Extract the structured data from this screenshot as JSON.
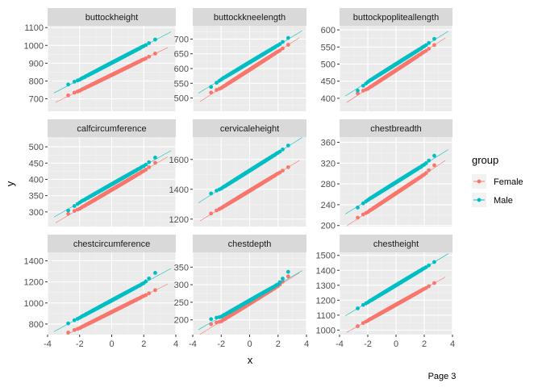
{
  "chart_data": {
    "type": "scatter",
    "subtype": "qq-plot facet grid",
    "xlabel": "x",
    "ylabel": "y",
    "xlim": [
      -4,
      4
    ],
    "x_ticks": [
      -4,
      -2,
      0,
      2,
      4
    ],
    "grid": true,
    "legend": {
      "title": "group",
      "placement": "right",
      "entries": [
        {
          "name": "Female",
          "color": "#F8766D"
        },
        {
          "name": "Male",
          "color": "#00BFC4"
        }
      ]
    },
    "footer": "Page 3",
    "panels": [
      {
        "title": "buttockheight",
        "ylim": [
          630,
          1110
        ],
        "y_ticks": [
          700,
          800,
          900,
          1000,
          1100
        ],
        "series": [
          {
            "name": "Female",
            "intercept": 834,
            "slope": 44,
            "qmin": -3.5,
            "qmax": 3.5,
            "low_tail": 10,
            "high_tail": 0
          },
          {
            "name": "Male",
            "intercept": 902,
            "slope": 47,
            "qmin": -3.6,
            "qmax": 3.7,
            "low_tail": 12,
            "high_tail": 6
          }
        ]
      },
      {
        "title": "buttockkneelength",
        "ylim": [
          455,
          745
        ],
        "y_ticks": [
          500,
          550,
          600,
          650,
          700
        ],
        "series": [
          {
            "name": "Female",
            "intercept": 596,
            "slope": 31,
            "qmin": -3.5,
            "qmax": 3.5,
            "low_tail": 14,
            "high_tail": 0
          },
          {
            "name": "Male",
            "intercept": 621,
            "slope": 29,
            "qmin": -3.6,
            "qmax": 3.7,
            "low_tail": -10,
            "high_tail": 8
          }
        ]
      },
      {
        "title": "buttockpopliteallength",
        "ylim": [
          362,
          612
        ],
        "y_ticks": [
          400,
          450,
          500,
          550,
          600
        ],
        "series": [
          {
            "name": "Female",
            "intercept": 482,
            "slope": 27,
            "qmin": -3.5,
            "qmax": 3.5,
            "low_tail": 12,
            "high_tail": 0
          },
          {
            "name": "Male",
            "intercept": 500,
            "slope": 26,
            "qmin": -3.6,
            "qmax": 3.7,
            "low_tail": -15,
            "high_tail": 6
          }
        ]
      },
      {
        "title": "calfcircumference",
        "ylim": [
          255,
          530
        ],
        "y_ticks": [
          300,
          350,
          400,
          450,
          500
        ],
        "series": [
          {
            "name": "Female",
            "intercept": 368,
            "slope": 29,
            "qmin": -3.5,
            "qmax": 3.5,
            "low_tail": 10,
            "high_tail": 8
          },
          {
            "name": "Male",
            "intercept": 385,
            "slope": 28,
            "qmin": -3.6,
            "qmax": 3.7,
            "low_tail": -10,
            "high_tail": 12
          }
        ]
      },
      {
        "title": "cervicaleheight",
        "ylim": [
          1150,
          1750
        ],
        "y_ticks": [
          1200,
          1400,
          1600
        ],
        "series": [
          {
            "name": "Female",
            "intercept": 1390,
            "slope": 58,
            "qmin": -3.5,
            "qmax": 3.5,
            "low_tail": 10,
            "high_tail": 0
          },
          {
            "name": "Male",
            "intercept": 1525,
            "slope": 60,
            "qmin": -3.6,
            "qmax": 3.7,
            "low_tail": 20,
            "high_tail": 10
          }
        ]
      },
      {
        "title": "chestbreadth",
        "ylim": [
          198,
          370
        ],
        "y_ticks": [
          200,
          240,
          280,
          320,
          360
        ],
        "series": [
          {
            "name": "Female",
            "intercept": 262,
            "slope": 18,
            "qmin": -3.5,
            "qmax": 3.5,
            "low_tail": 4,
            "high_tail": 10
          },
          {
            "name": "Male",
            "intercept": 283,
            "slope": 17,
            "qmin": -3.6,
            "qmax": 3.7,
            "low_tail": -5,
            "high_tail": 10
          }
        ]
      },
      {
        "title": "chestcircumference",
        "ylim": [
          700,
          1480
        ],
        "y_ticks": [
          800,
          1000,
          1200,
          1400
        ],
        "series": [
          {
            "name": "Female",
            "intercept": 914,
            "slope": 76,
            "qmin": -3.5,
            "qmax": 3.5,
            "low_tail": 25,
            "high_tail": 0
          },
          {
            "name": "Male",
            "intercept": 1024,
            "slope": 82,
            "qmin": -3.6,
            "qmax": 3.7,
            "low_tail": 10,
            "high_tail": 80
          }
        ]
      },
      {
        "title": "chestdepth",
        "ylim": [
          158,
          392
        ],
        "y_ticks": [
          200,
          250,
          300,
          350
        ],
        "series": [
          {
            "name": "Female",
            "intercept": 246,
            "slope": 25,
            "qmin": -3.5,
            "qmax": 3.5,
            "low_tail": 20,
            "high_tail": 20
          },
          {
            "name": "Male",
            "intercept": 255,
            "slope": 23,
            "qmin": -3.6,
            "qmax": 3.7,
            "low_tail": 20,
            "high_tail": 40
          }
        ]
      },
      {
        "title": "chestheight",
        "ylim": [
          970,
          1520
        ],
        "y_ticks": [
          1000,
          1100,
          1200,
          1300,
          1400,
          1500
        ],
        "series": [
          {
            "name": "Female",
            "intercept": 1170,
            "slope": 53,
            "qmin": -3.5,
            "qmax": 3.5,
            "low_tail": 0,
            "high_tail": 0
          },
          {
            "name": "Male",
            "intercept": 1300,
            "slope": 57,
            "qmin": -3.6,
            "qmax": 3.7,
            "low_tail": 0,
            "high_tail": 0
          }
        ]
      }
    ]
  }
}
